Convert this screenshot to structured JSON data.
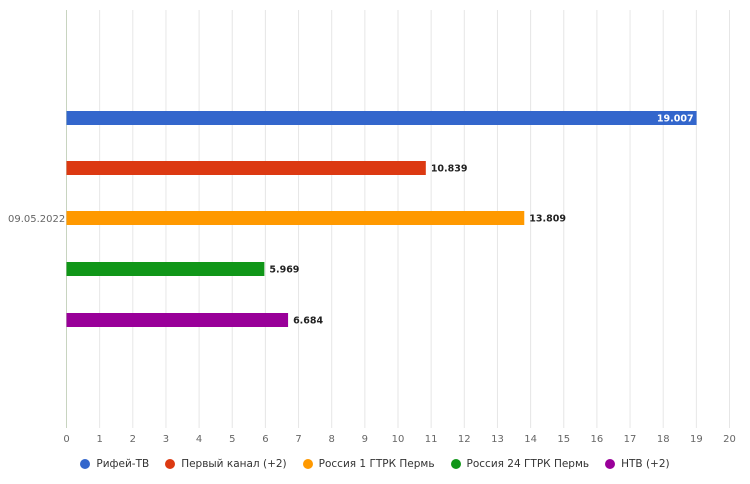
{
  "chart_data": {
    "type": "bar",
    "orientation": "horizontal",
    "categories": [
      "09.05.2022"
    ],
    "series": [
      {
        "name": "Рифей-ТВ",
        "values": [
          19.007
        ],
        "label": "19.007",
        "color": "#3366cc"
      },
      {
        "name": "Первый канал (+2)",
        "values": [
          10.839
        ],
        "label": "10.839",
        "color": "#dc3912"
      },
      {
        "name": "Россия 1 ГТРК Пермь",
        "values": [
          13.809
        ],
        "label": "13.809",
        "color": "#ff9900"
      },
      {
        "name": "Россия 24 ГТРК Пермь",
        "values": [
          5.969
        ],
        "label": "5.969",
        "color": "#109618"
      },
      {
        "name": "НТВ (+2)",
        "values": [
          6.684
        ],
        "label": "6.684",
        "color": "#990099"
      }
    ],
    "xlim": [
      0,
      20
    ],
    "xticks": [
      "0",
      "1",
      "2",
      "3",
      "4",
      "5",
      "6",
      "7",
      "8",
      "9",
      "10",
      "11",
      "12",
      "13",
      "14",
      "15",
      "16",
      "17",
      "18",
      "19",
      "20"
    ],
    "grid": true,
    "legend_position": "bottom",
    "title": "",
    "xlabel": "",
    "ylabel": ""
  }
}
